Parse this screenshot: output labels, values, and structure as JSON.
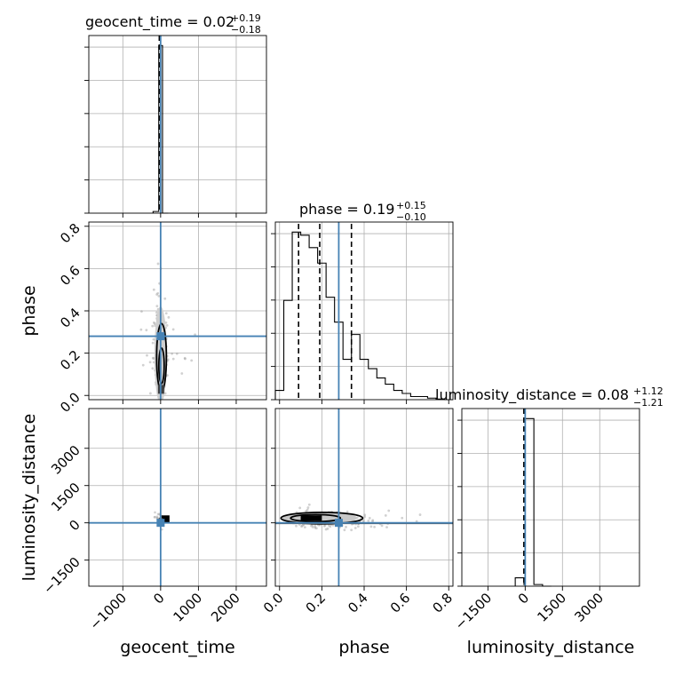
{
  "chart_data": {
    "type": "corner",
    "parameters": [
      {
        "name": "geocent_time",
        "label": "geocent_time",
        "range": [
          -1900,
          2800
        ],
        "ticks": [
          -1000,
          0,
          1000,
          2000
        ],
        "tick_labels": [
          "−1000",
          "0",
          "1000",
          "2000"
        ],
        "median": "0.02",
        "plus": "+0.19",
        "minus": "−0.18",
        "truth": 0.02
      },
      {
        "name": "phase",
        "label": "phase",
        "range": [
          -0.02,
          0.82
        ],
        "ticks": [
          0.0,
          0.2,
          0.4,
          0.6,
          0.8
        ],
        "tick_labels": [
          "0.0",
          "0.2",
          "0.4",
          "0.6",
          "0.8"
        ],
        "median": "0.19",
        "plus": "+0.15",
        "minus": "−0.10",
        "truth": 0.28,
        "quantiles": [
          0.09,
          0.19,
          0.34
        ]
      },
      {
        "name": "luminosity_distance",
        "label": "luminosity_distance",
        "range": [
          -2550,
          4600
        ],
        "ticks": [
          -1500,
          0,
          1500,
          3000
        ],
        "tick_labels": [
          "−1500",
          "0",
          "1500",
          "3000"
        ],
        "median": "0.08",
        "plus": "+1.12",
        "minus": "−1.21",
        "truth": 0.08
      }
    ],
    "histograms": {
      "geocent_time": {
        "edges": [
          -200,
          -50,
          50,
          200
        ],
        "counts": [
          1,
          100,
          0
        ]
      },
      "phase": {
        "edges": [
          -0.02,
          0.02,
          0.06,
          0.1,
          0.14,
          0.18,
          0.22,
          0.26,
          0.3,
          0.34,
          0.38,
          0.42,
          0.46,
          0.5,
          0.54,
          0.58,
          0.62,
          0.66,
          0.7,
          0.74,
          0.78,
          0.82
        ],
        "counts": [
          3,
          32,
          54,
          53,
          49,
          44,
          33,
          25,
          13,
          21,
          13,
          10,
          7,
          5,
          3,
          2,
          1,
          1,
          0.5,
          0.2,
          0
        ]
      },
      "luminosity_distance": {
        "edges": [
          -400,
          -50,
          0,
          350,
          700,
          1050
        ],
        "counts": [
          5,
          1,
          100,
          1,
          0
        ]
      }
    },
    "scatter_pairs": [
      {
        "x": "geocent_time",
        "y": "phase"
      },
      {
        "x": "geocent_time",
        "y": "luminosity_distance"
      },
      {
        "x": "phase",
        "y": "luminosity_distance"
      }
    ],
    "grid": true,
    "truth_color": "#4682b4",
    "contour_color": "#000000"
  }
}
